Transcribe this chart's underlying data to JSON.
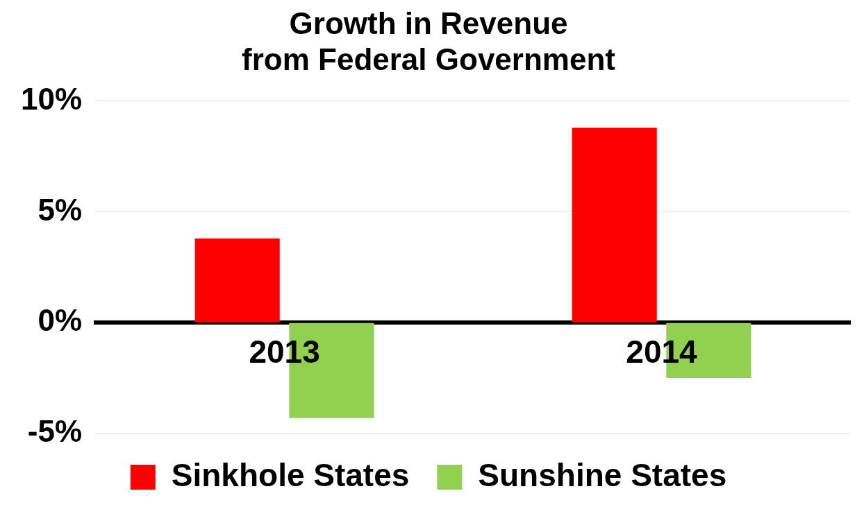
{
  "chart_data": {
    "type": "bar",
    "title": [
      "Growth in Revenue",
      "from Federal Government"
    ],
    "categories": [
      "2013",
      "2014"
    ],
    "series": [
      {
        "name": "Sinkhole States",
        "color": "#ff0000",
        "values": [
          3.8,
          8.8
        ]
      },
      {
        "name": "Sunshine States",
        "color": "#92d050",
        "values": [
          -4.3,
          -2.5
        ]
      }
    ],
    "ylim": [
      -5,
      10
    ],
    "yticks": [
      {
        "value": -5,
        "label": "-5%"
      },
      {
        "value": 0,
        "label": "0%"
      },
      {
        "value": 5,
        "label": "5%"
      },
      {
        "value": 10,
        "label": "10%"
      }
    ],
    "grid": "y",
    "legend": "bottom"
  }
}
